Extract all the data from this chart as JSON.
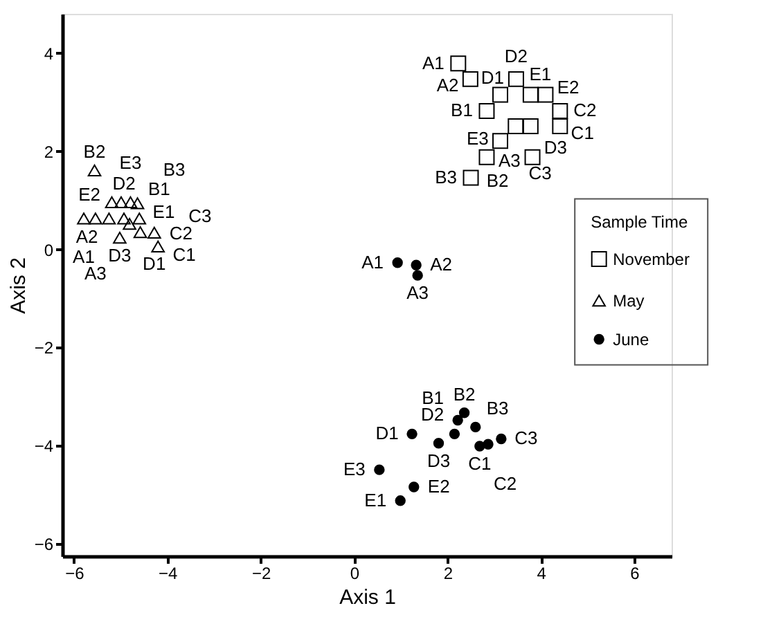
{
  "chart_data": {
    "type": "scatter",
    "xlabel": "Axis 1",
    "ylabel": "Axis 2",
    "legend_title": "Sample Time",
    "legend": "right",
    "grid": false,
    "xlim": [
      -6.25,
      6.8
    ],
    "ylim": [
      -6.25,
      4.8
    ],
    "xticks": [
      -6,
      -4,
      -2,
      0,
      2,
      4,
      6
    ],
    "yticks": [
      -6,
      -4,
      -2,
      0,
      2,
      4
    ],
    "series": [
      {
        "name": "November",
        "color": "#000000",
        "marker": "square",
        "x": [
          2.23,
          2.49,
          3.47,
          3.13,
          3.78,
          4.1,
          2.84,
          4.41,
          3.46,
          3.78,
          4.41,
          3.13,
          2.84,
          3.82,
          2.5
        ],
        "values": [
          3.79,
          3.47,
          3.47,
          3.15,
          3.15,
          3.15,
          2.82,
          2.82,
          2.51,
          2.51,
          2.51,
          2.21,
          1.88,
          1.88,
          1.46
        ],
        "value_labels": [
          "A1",
          "A2",
          "D2",
          "D1",
          "E1",
          "E2",
          "B1",
          "C2",
          "E3",
          "D3",
          "C1",
          "A3",
          "B2",
          "C3",
          "B3"
        ]
      },
      {
        "name": "May",
        "color": "#000000",
        "marker": "triangle",
        "x": [
          -5.56,
          -5.19,
          -4.99,
          -4.79,
          -4.64,
          -5.79,
          -5.54,
          -5.25,
          -4.93,
          -4.81,
          -4.6,
          -5.02,
          -4.58,
          -4.28,
          -4.2
        ],
        "values": [
          1.61,
          0.96,
          0.96,
          0.96,
          0.94,
          0.63,
          0.63,
          0.63,
          0.63,
          0.52,
          0.63,
          0.24,
          0.35,
          0.34,
          0.06
        ],
        "value_labels": [
          "B2",
          "E2",
          "B1",
          "E3",
          "B3",
          "A1",
          "A3",
          "A2",
          "D2",
          "E1",
          "C2",
          "D3",
          "D1",
          "C3",
          "C1"
        ]
      },
      {
        "name": "June",
        "color": "#000000",
        "marker": "circle",
        "x": [
          0.93,
          1.33,
          1.36,
          1.24,
          2.15,
          1.81,
          2.22,
          2.36,
          2.6,
          2.69,
          2.87,
          3.15,
          0.54,
          0.99,
          1.28
        ],
        "values": [
          -0.27,
          -0.32,
          -0.53,
          -3.76,
          -3.76,
          -3.95,
          -3.48,
          -3.33,
          -3.62,
          -4.01,
          -3.97,
          -3.86,
          -4.49,
          -5.12,
          -4.84
        ],
        "value_labels": [
          "A1",
          "A2",
          "A3",
          "D1",
          "D2",
          "D3",
          "B1",
          "B2",
          "B3",
          "C1",
          "C2",
          "C3",
          "E3",
          "E1",
          "E2"
        ]
      }
    ]
  }
}
